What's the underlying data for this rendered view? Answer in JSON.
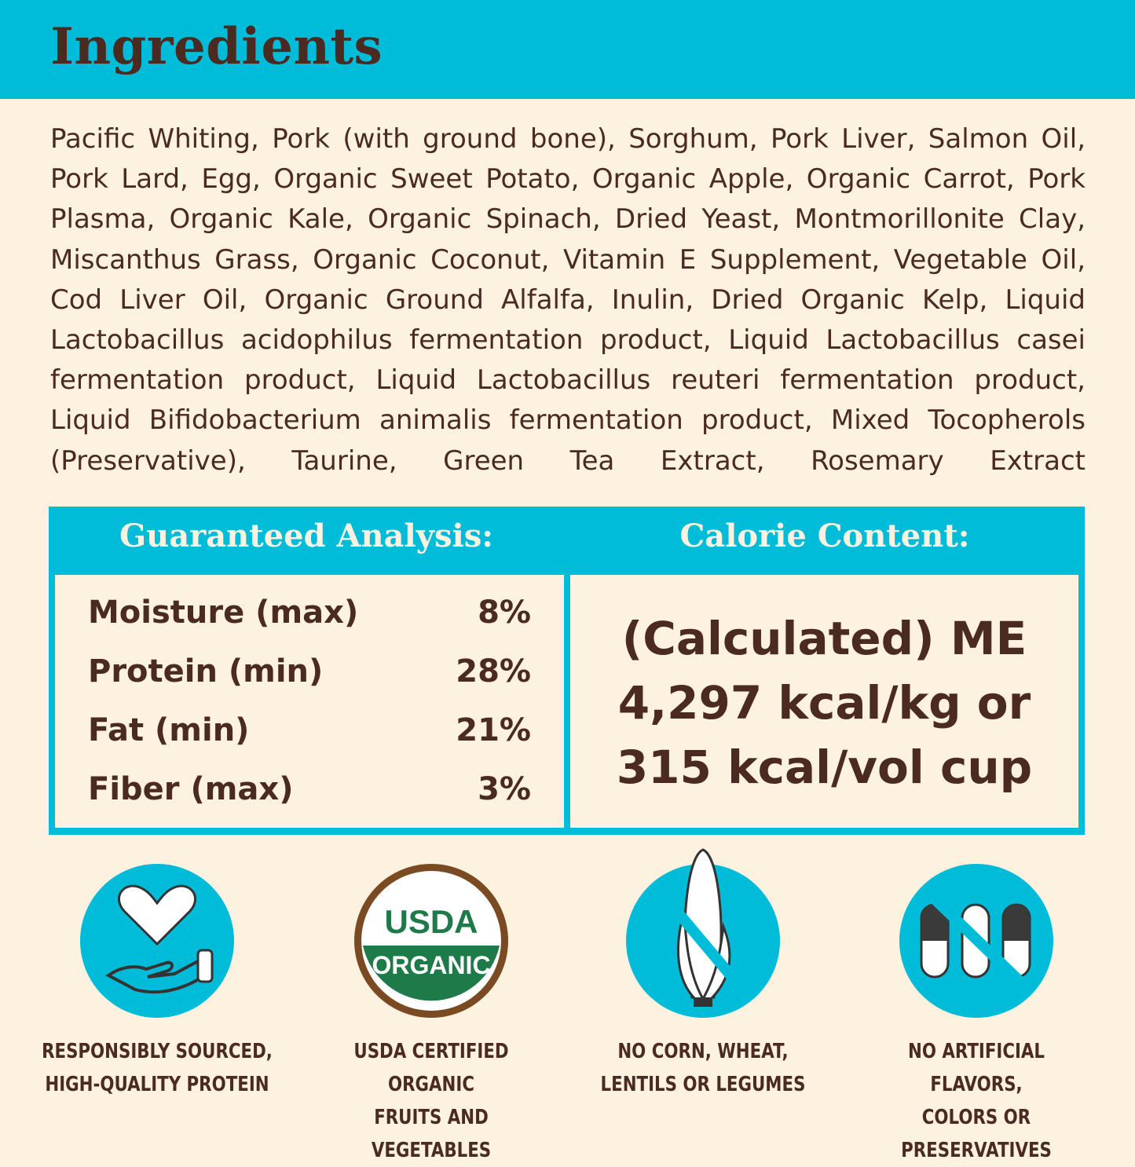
{
  "header": {
    "title": "Ingredients"
  },
  "ingredients": "Pacific Whiting, Pork (with ground bone), Sorghum, Pork Liver, Salmon Oil, Pork Lard, Egg, Organic Sweet Potato, Organic Apple, Organic Carrot, Pork Plasma, Organic Kale, Organic Spinach, Dried Yeast, Montmorillonite Clay, Miscanthus Grass, Organic Coconut, Vitamin E Supplement, Vegetable Oil, Cod Liver Oil, Organic Ground Alfalfa, Inulin, Dried Organic Kelp, Liquid Lactobacillus acidophilus fermentation product, Liquid Lactobacillus casei fermentation product, Liquid Lactobacillus reuteri fermentation product, Liquid Bifidobacterium animalis fermentation product, Mixed Tocopherols (Preservative), Taurine, Green Tea Extract, Rosemary Extract",
  "analysis": {
    "title": "Guaranteed Analysis:",
    "rows": [
      {
        "label": "Moisture (max)",
        "value": "8%"
      },
      {
        "label": "Protein (min)",
        "value": "28%"
      },
      {
        "label": "Fat (min)",
        "value": "21%"
      },
      {
        "label": "Fiber (max)",
        "value": "3%"
      }
    ]
  },
  "calorie": {
    "title": "Calorie Content:",
    "lines": [
      "(Calculated) ME",
      "4,297 kcal/kg or",
      "315 kcal/vol cup"
    ]
  },
  "badges": [
    {
      "icon": "heart-hand-icon",
      "line1": "RESPONSIBLY SOURCED,",
      "line2": "HIGH-QUALITY PROTEIN"
    },
    {
      "icon": "usda-organic-seal",
      "seal_text": [
        "USDA",
        "ORGANIC"
      ],
      "line1": "USDA CERTIFIED ORGANIC",
      "line2": "FRUITS AND VEGETABLES"
    },
    {
      "icon": "no-corn-icon",
      "line1": "NO CORN, WHEAT,",
      "line2": "LENTILS OR LEGUMES"
    },
    {
      "icon": "no-capsules-icon",
      "line1": "NO ARTIFICIAL FLAVORS,",
      "line2": "COLORS OR PRESERVATIVES"
    }
  ],
  "colors": {
    "accent": "#00bcd9",
    "text": "#4a2a21",
    "background": "#fdf2df",
    "usda_green": "#1f7a4a"
  }
}
